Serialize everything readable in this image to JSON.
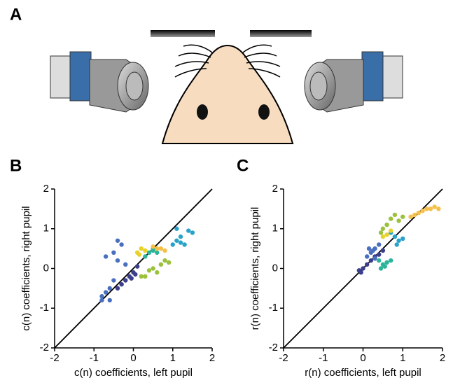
{
  "panel_labels": [
    "A",
    "B",
    "C"
  ],
  "chart_data": [
    {
      "type": "scatter",
      "xlabel": "c(n) coefficients, left pupil",
      "ylabel": "c(n) coefficients, right pupil",
      "xlim": [
        -2,
        2
      ],
      "ylim": [
        -2,
        2
      ],
      "xticks": [
        -2,
        -1,
        0,
        1,
        2
      ],
      "yticks": [
        -2,
        -1,
        0,
        1,
        2
      ],
      "diagonal": true,
      "series": [
        {
          "color": "#3b3e8c",
          "x": [
            -0.3,
            -0.2,
            -0.1,
            0,
            0.1,
            -0.05,
            0.05,
            -0.4
          ],
          "y": [
            -0.4,
            -0.3,
            -0.2,
            -0.1,
            0.05,
            -0.25,
            -0.15,
            -0.5
          ]
        },
        {
          "color": "#4a6fbf",
          "x": [
            -0.8,
            -0.7,
            -0.6,
            -0.5,
            -0.4,
            -0.3,
            -0.5,
            -0.7,
            -0.6,
            -0.8,
            -0.2,
            -0.4
          ],
          "y": [
            -0.7,
            -0.6,
            -0.5,
            -0.3,
            0.2,
            0.6,
            0.4,
            0.3,
            -0.8,
            -0.8,
            0.1,
            0.7
          ]
        },
        {
          "color": "#29a3c9",
          "x": [
            1.0,
            1.1,
            1.2,
            1.4,
            1.3,
            1.5,
            1.1,
            1.2
          ],
          "y": [
            0.6,
            0.7,
            0.8,
            0.95,
            0.6,
            0.9,
            1.0,
            0.65
          ]
        },
        {
          "color": "#2ab59b",
          "x": [
            0.4,
            0.5,
            0.6,
            0.3,
            0.5
          ],
          "y": [
            0.4,
            0.5,
            0.4,
            0.3,
            0.45
          ]
        },
        {
          "color": "#9bc13c",
          "x": [
            0.3,
            0.5,
            0.7,
            0.8,
            0.6,
            0.9,
            0.4,
            0.2
          ],
          "y": [
            -0.2,
            0.0,
            0.1,
            0.2,
            -0.1,
            0.15,
            -0.05,
            -0.2
          ]
        },
        {
          "color": "#e8d22a",
          "x": [
            0.1,
            0.2,
            0.3,
            0.15
          ],
          "y": [
            0.4,
            0.5,
            0.45,
            0.35
          ]
        },
        {
          "color": "#f5c04a",
          "x": [
            0.6,
            0.7,
            0.8,
            0.5
          ],
          "y": [
            0.5,
            0.5,
            0.45,
            0.55
          ]
        }
      ]
    },
    {
      "type": "scatter",
      "xlabel": "r(n) coefficients, left pupil",
      "ylabel": "r(n) coefficients, right pupil",
      "xlim": [
        -2,
        2
      ],
      "ylim": [
        -2,
        2
      ],
      "xticks": [
        -2,
        -1,
        0,
        1,
        2
      ],
      "yticks": [
        -2,
        -1,
        0,
        1,
        2
      ],
      "diagonal": true,
      "series": [
        {
          "color": "#3b3e8c",
          "x": [
            -0.1,
            0,
            0.1,
            0.2,
            0.3,
            0.4,
            0.5,
            -0.05
          ],
          "y": [
            -0.05,
            0,
            0.1,
            0.2,
            0.3,
            0.35,
            0.45,
            -0.1
          ]
        },
        {
          "color": "#4a6fbf",
          "x": [
            0.1,
            0.2,
            0.3,
            0.4,
            0.15,
            0.3,
            0.25
          ],
          "y": [
            0.3,
            0.4,
            0.5,
            0.6,
            0.5,
            0.25,
            0.45
          ]
        },
        {
          "color": "#2ab59b",
          "x": [
            0.4,
            0.5,
            0.6,
            0.7,
            0.45,
            0.55
          ],
          "y": [
            0.2,
            0.1,
            0.15,
            0.2,
            0.0,
            0.05
          ]
        },
        {
          "color": "#29a3c9",
          "x": [
            0.8,
            0.9,
            1.0,
            0.7,
            0.85
          ],
          "y": [
            0.8,
            0.7,
            0.75,
            0.9,
            0.6
          ]
        },
        {
          "color": "#9bc13c",
          "x": [
            0.5,
            0.6,
            0.8,
            0.7,
            0.9,
            0.45,
            1.0
          ],
          "y": [
            1.0,
            1.1,
            1.35,
            1.25,
            1.2,
            0.9,
            1.3
          ]
        },
        {
          "color": "#e8d22a",
          "x": [
            0.6,
            0.7,
            0.5
          ],
          "y": [
            0.85,
            0.95,
            0.8
          ]
        },
        {
          "color": "#f5c04a",
          "x": [
            1.2,
            1.4,
            1.6,
            1.8,
            1.9,
            1.3,
            1.5,
            1.7
          ],
          "y": [
            1.3,
            1.4,
            1.5,
            1.55,
            1.5,
            1.35,
            1.45,
            1.5
          ]
        }
      ]
    }
  ]
}
